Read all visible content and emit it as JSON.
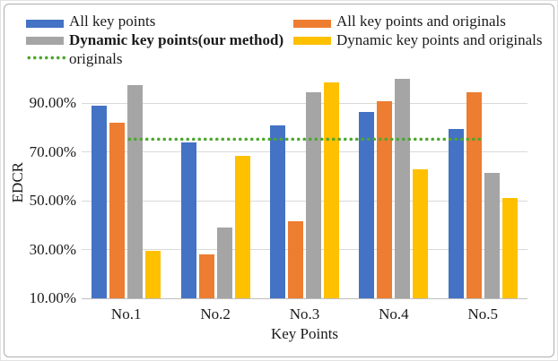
{
  "chart_data": {
    "type": "bar",
    "title": "",
    "xlabel": "Key Points",
    "ylabel": "EDCR",
    "categories": [
      "No.1",
      "No.2",
      "No.3",
      "No.4",
      "No.5"
    ],
    "series": [
      {
        "name": "All key points",
        "color": "#4472C4",
        "values": [
          89,
          74,
          81,
          86.5,
          79.5
        ]
      },
      {
        "name": "All key points and originals",
        "color": "#ED7D31",
        "values": [
          82,
          28,
          41.5,
          91,
          94.5
        ]
      },
      {
        "name": "Dynamic key points(our method)",
        "color": "#A5A5A5",
        "values": [
          97.5,
          39,
          94.5,
          100,
          61.5
        ]
      },
      {
        "name": "Dynamic key points and originals",
        "color": "#FFC000",
        "values": [
          29.5,
          68.5,
          98.5,
          63,
          51
        ]
      }
    ],
    "reference_line": {
      "name": "originals",
      "color": "#4EA72E",
      "style": "dotted",
      "value": 75.5
    },
    "y_axis": {
      "min": 10,
      "max": 100,
      "format": "percent",
      "ticks": [
        {
          "value": 90,
          "label": "90.00%"
        },
        {
          "value": 70,
          "label": "70.00%"
        },
        {
          "value": 50,
          "label": "50.00%"
        },
        {
          "value": 30,
          "label": "30.00%"
        },
        {
          "value": 10,
          "label": "10.00%"
        }
      ]
    },
    "grid": true,
    "legend_position": "top"
  },
  "legend": {
    "items": [
      {
        "label": "All key points",
        "swatch": "bar",
        "color": "#4472C4",
        "bold": false,
        "column": "left",
        "row": 0
      },
      {
        "label": "All key points and originals",
        "swatch": "bar",
        "color": "#ED7D31",
        "bold": false,
        "column": "right",
        "row": 0
      },
      {
        "label": "Dynamic key points(our method)",
        "swatch": "bar",
        "color": "#A5A5A5",
        "bold": true,
        "column": "left",
        "row": 1
      },
      {
        "label": "Dynamic key points and originals",
        "swatch": "bar",
        "color": "#FFC000",
        "bold": false,
        "column": "right",
        "row": 1
      },
      {
        "label": "originals",
        "swatch": "dotted-line",
        "color": "#4EA72E",
        "bold": false,
        "column": "left",
        "row": 2
      }
    ]
  },
  "colors": {
    "grid": "#d9d9d9",
    "axis_line": "#bfbfbf",
    "text": "#1a1a1a",
    "frame_border": "#aeaeae"
  }
}
